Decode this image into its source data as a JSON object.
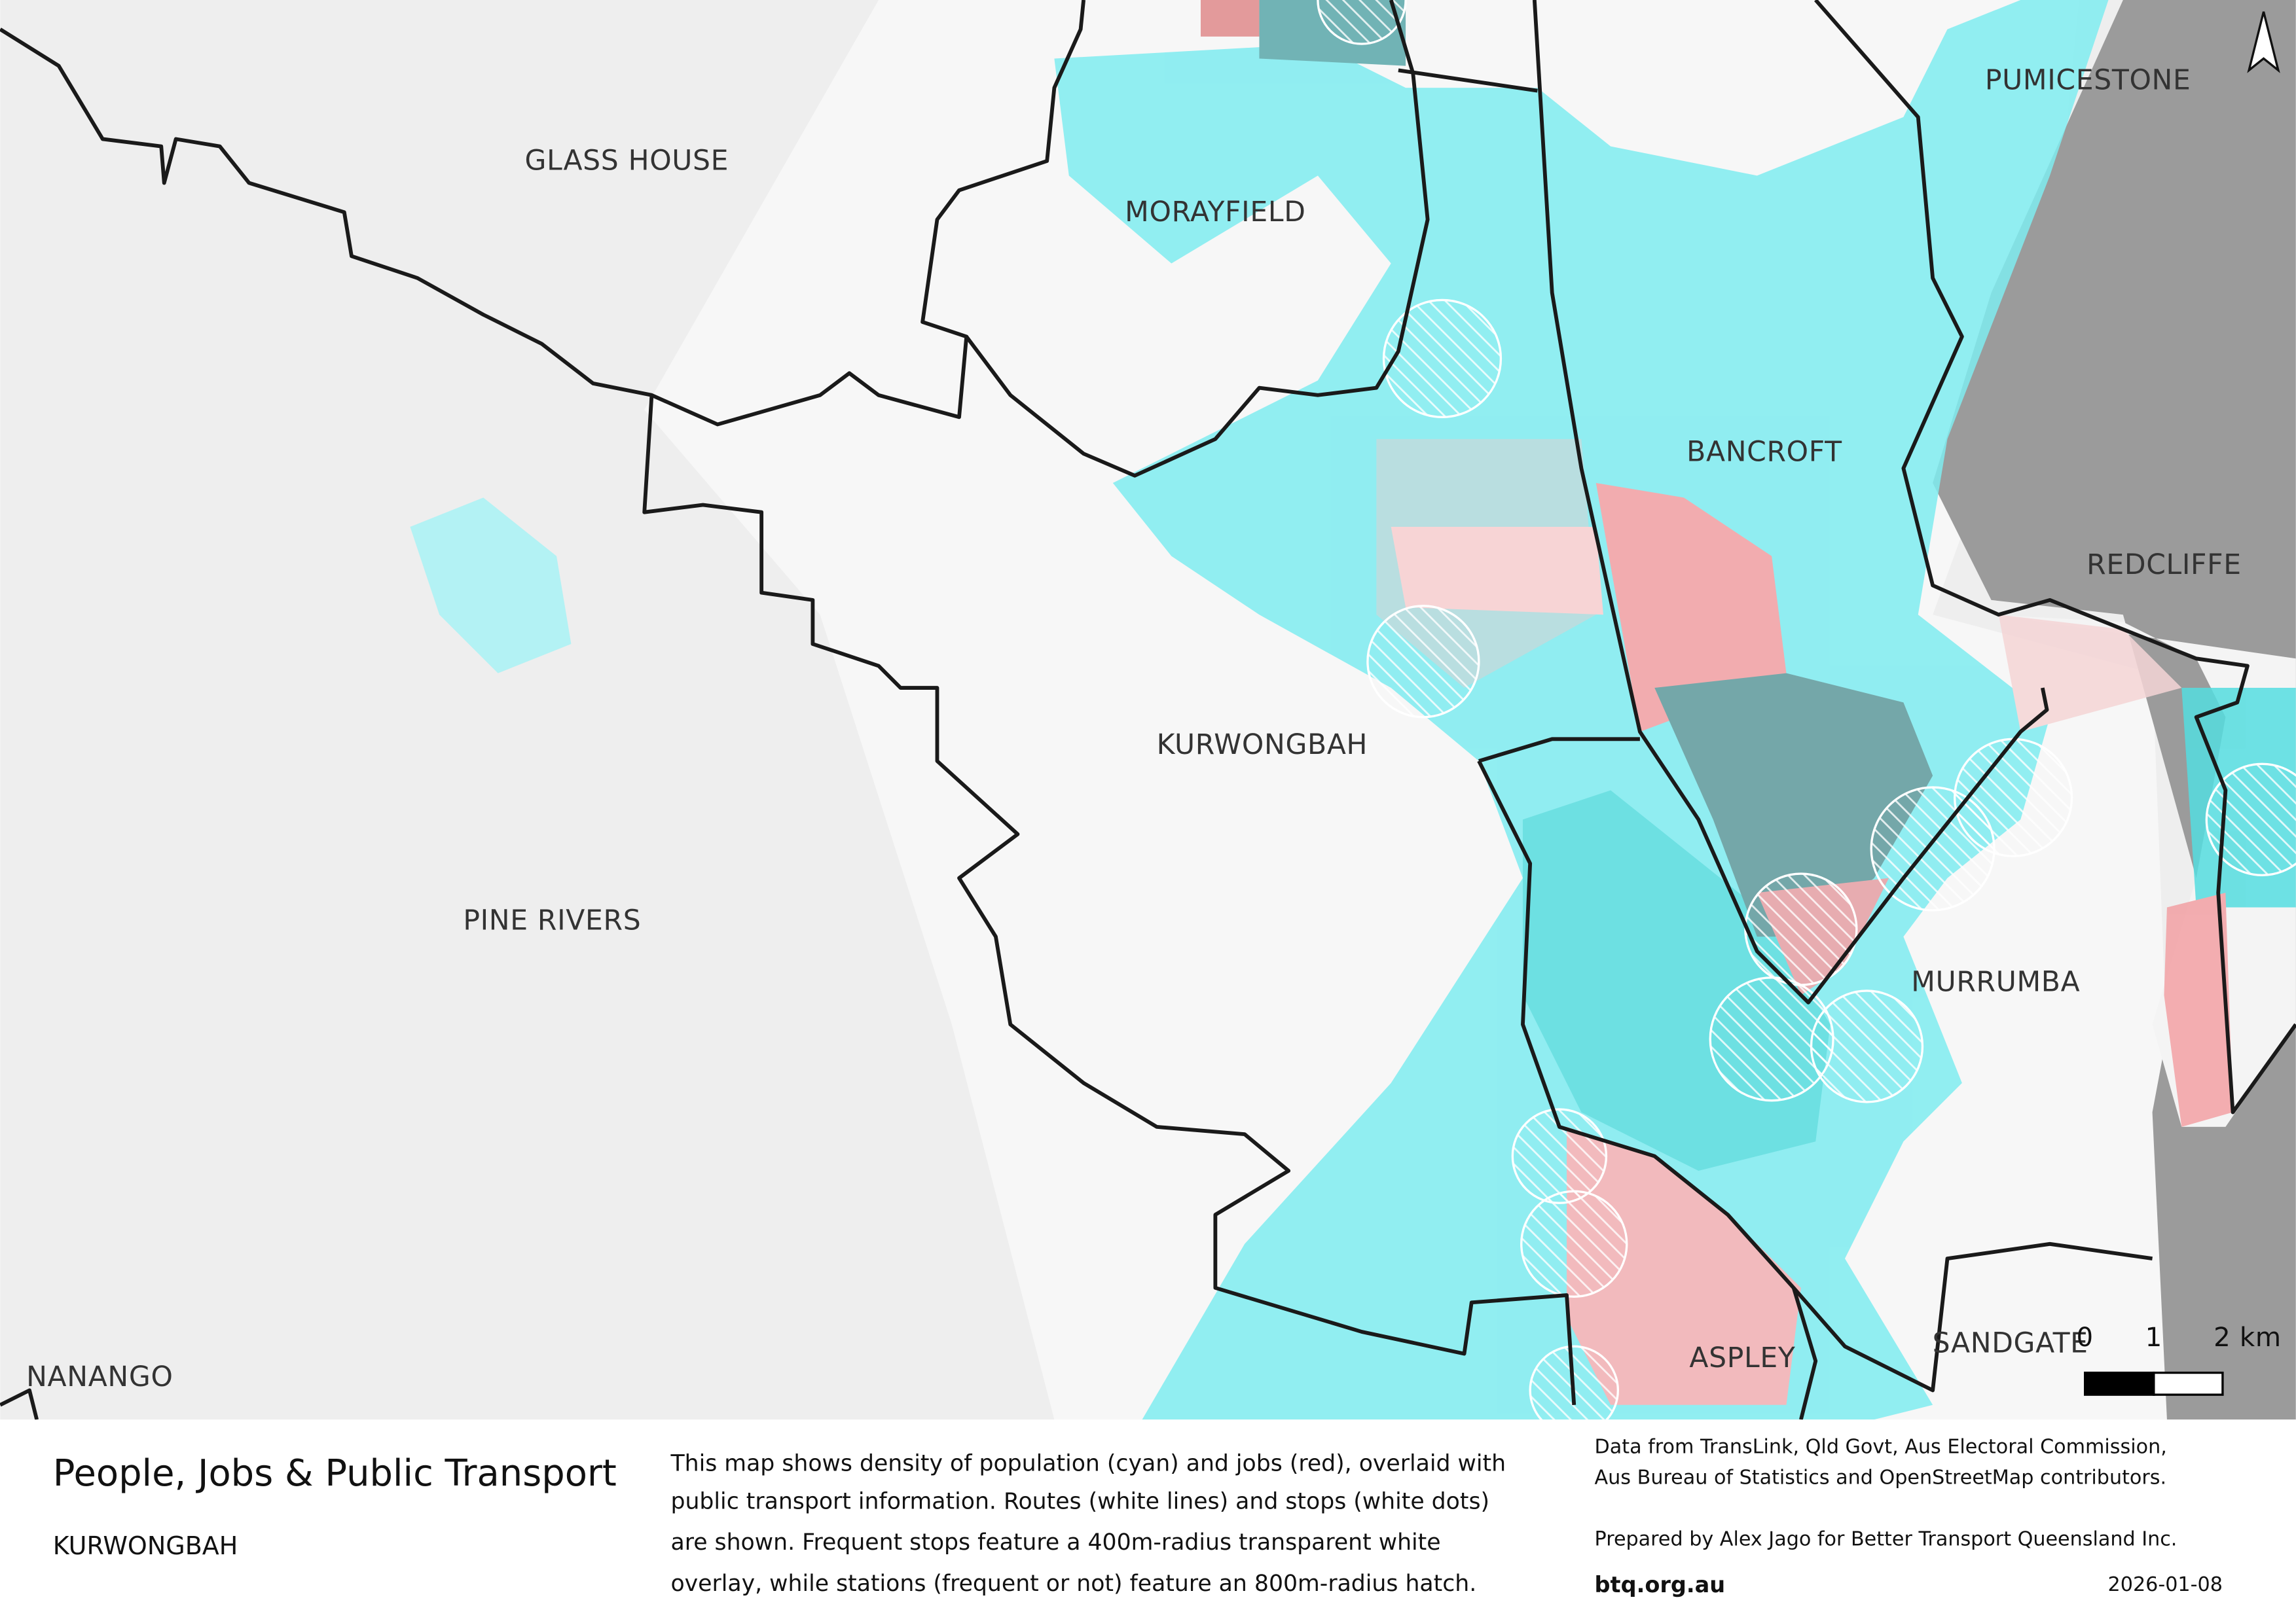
{
  "map": {
    "labels": [
      "GLASS HOUSE",
      "MORAYFIELD",
      "PUMICESTONE",
      "BANCROFT",
      "REDCLIFFE",
      "KURWONGBAH",
      "PINE RIVERS",
      "MURRUMBA",
      "ASPLEY",
      "SANDGATE",
      "NANANGO"
    ],
    "scale_bar": [
      "0",
      "1",
      "2 km"
    ]
  },
  "footer": {
    "title": "People, Jobs & Public Transport",
    "subtitle": "KURWONGBAH",
    "description": [
      "This map shows density of population (cyan) and jobs (red), overlaid with",
      "public transport information. Routes (white lines) and stops (white dots)",
      "are shown. Frequent stops feature a 400m-radius transparent white",
      "overlay, while stations (frequent or not) feature an 800m-radius hatch."
    ],
    "credits": [
      "Data from TransLink,  Qld Govt,  Aus Electoral Commission,",
      "Aus Bureau of Statistics and OpenStreetMap contributors."
    ],
    "prepared": "Prepared by Alex Jago for Better Transport Queensland Inc.",
    "url": "btq.org.au",
    "date": "2026-01-08"
  }
}
